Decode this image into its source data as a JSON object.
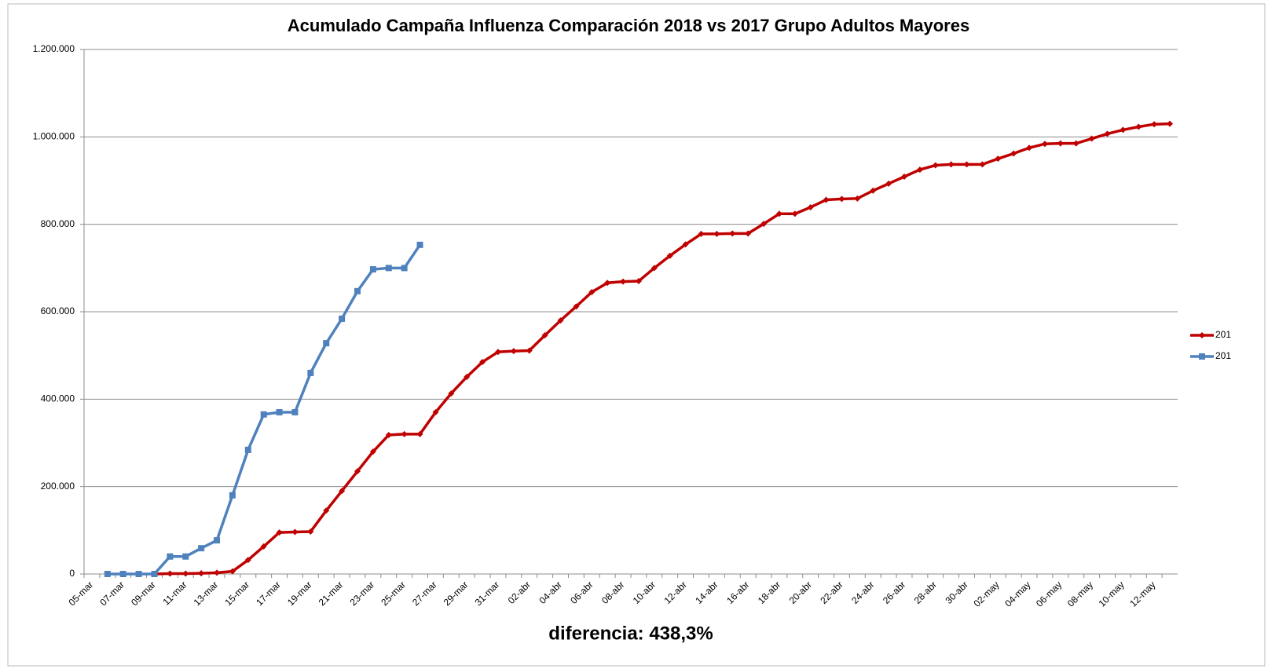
{
  "chart_data": {
    "type": "line",
    "title": "Acumulado Campaña Influenza Comparación 2018 vs 2017  Grupo Adultos Mayores",
    "annotation": "diferencia: 438,3%",
    "categories": [
      "05-mar",
      null,
      "07-mar",
      null,
      "09-mar",
      null,
      "11-mar",
      null,
      "13-mar",
      null,
      "15-mar",
      null,
      "17-mar",
      null,
      "19-mar",
      null,
      "21-mar",
      null,
      "23-mar",
      null,
      "25-mar",
      null,
      "27-mar",
      null,
      "29-mar",
      null,
      "31-mar",
      null,
      "02-abr",
      null,
      "04-abr",
      null,
      "06-abr",
      null,
      "08-abr",
      null,
      "10-abr",
      null,
      "12-abr",
      null,
      "14-abr",
      null,
      "16-abr",
      null,
      "18-abr",
      null,
      "20-abr",
      null,
      "22-abr",
      null,
      "24-abr",
      null,
      "26-abr",
      null,
      "28-abr",
      null,
      "30-abr",
      null,
      "02-may",
      null,
      "04-may",
      null,
      "06-may",
      null,
      "08-may",
      null,
      "10-may",
      null,
      "12-may",
      null
    ],
    "series": [
      {
        "name": "201",
        "color": "#c00000",
        "marker": "diamond",
        "values": [
          null,
          null,
          null,
          null,
          0,
          1000,
          1000,
          1500,
          3000,
          6000,
          32000,
          63000,
          95000,
          96000,
          97000,
          145000,
          190000,
          235000,
          280000,
          318000,
          320000,
          320000,
          370000,
          413000,
          451000,
          485000,
          508000,
          510000,
          511000,
          546000,
          580000,
          612000,
          645000,
          666000,
          669000,
          670000,
          700000,
          728000,
          754000,
          778000,
          778000,
          779000,
          779000,
          801000,
          824000,
          824000,
          839000,
          856000,
          858000,
          859000,
          877000,
          893000,
          909000,
          925000,
          935000,
          937000,
          937000,
          937000,
          950000,
          962000,
          975000,
          984000,
          985000,
          985000,
          996000,
          1007000,
          1016000,
          1023000,
          1029000,
          1030000
        ]
      },
      {
        "name": "201",
        "color": "#4f81bd",
        "marker": "square",
        "values": [
          null,
          0,
          0,
          0,
          0,
          40000,
          40000,
          59000,
          77000,
          180000,
          284000,
          365000,
          370000,
          370000,
          460000,
          528000,
          584000,
          647000,
          697000,
          700000,
          700000,
          753000,
          null,
          null,
          null,
          null,
          null,
          null,
          null,
          null,
          null,
          null,
          null,
          null,
          null,
          null,
          null,
          null,
          null,
          null,
          null,
          null,
          null,
          null,
          null,
          null,
          null,
          null,
          null,
          null,
          null,
          null,
          null,
          null,
          null,
          null,
          null,
          null,
          null,
          null,
          null,
          null,
          null,
          null,
          null,
          null,
          null,
          null,
          null,
          null
        ]
      }
    ],
    "ylim": [
      0,
      1200000
    ],
    "yticks": [
      0,
      {
        "value": 200000,
        "label": "200.000"
      },
      {
        "value": 400000,
        "label": "400.000"
      },
      {
        "value": 600000,
        "label": "600.000"
      },
      {
        "value": 800000,
        "label": "800.000"
      },
      {
        "value": 1000000,
        "label": "1.000.000"
      },
      {
        "value": 1200000,
        "label": "1.200.000"
      }
    ],
    "grid": true,
    "legend": "right"
  }
}
